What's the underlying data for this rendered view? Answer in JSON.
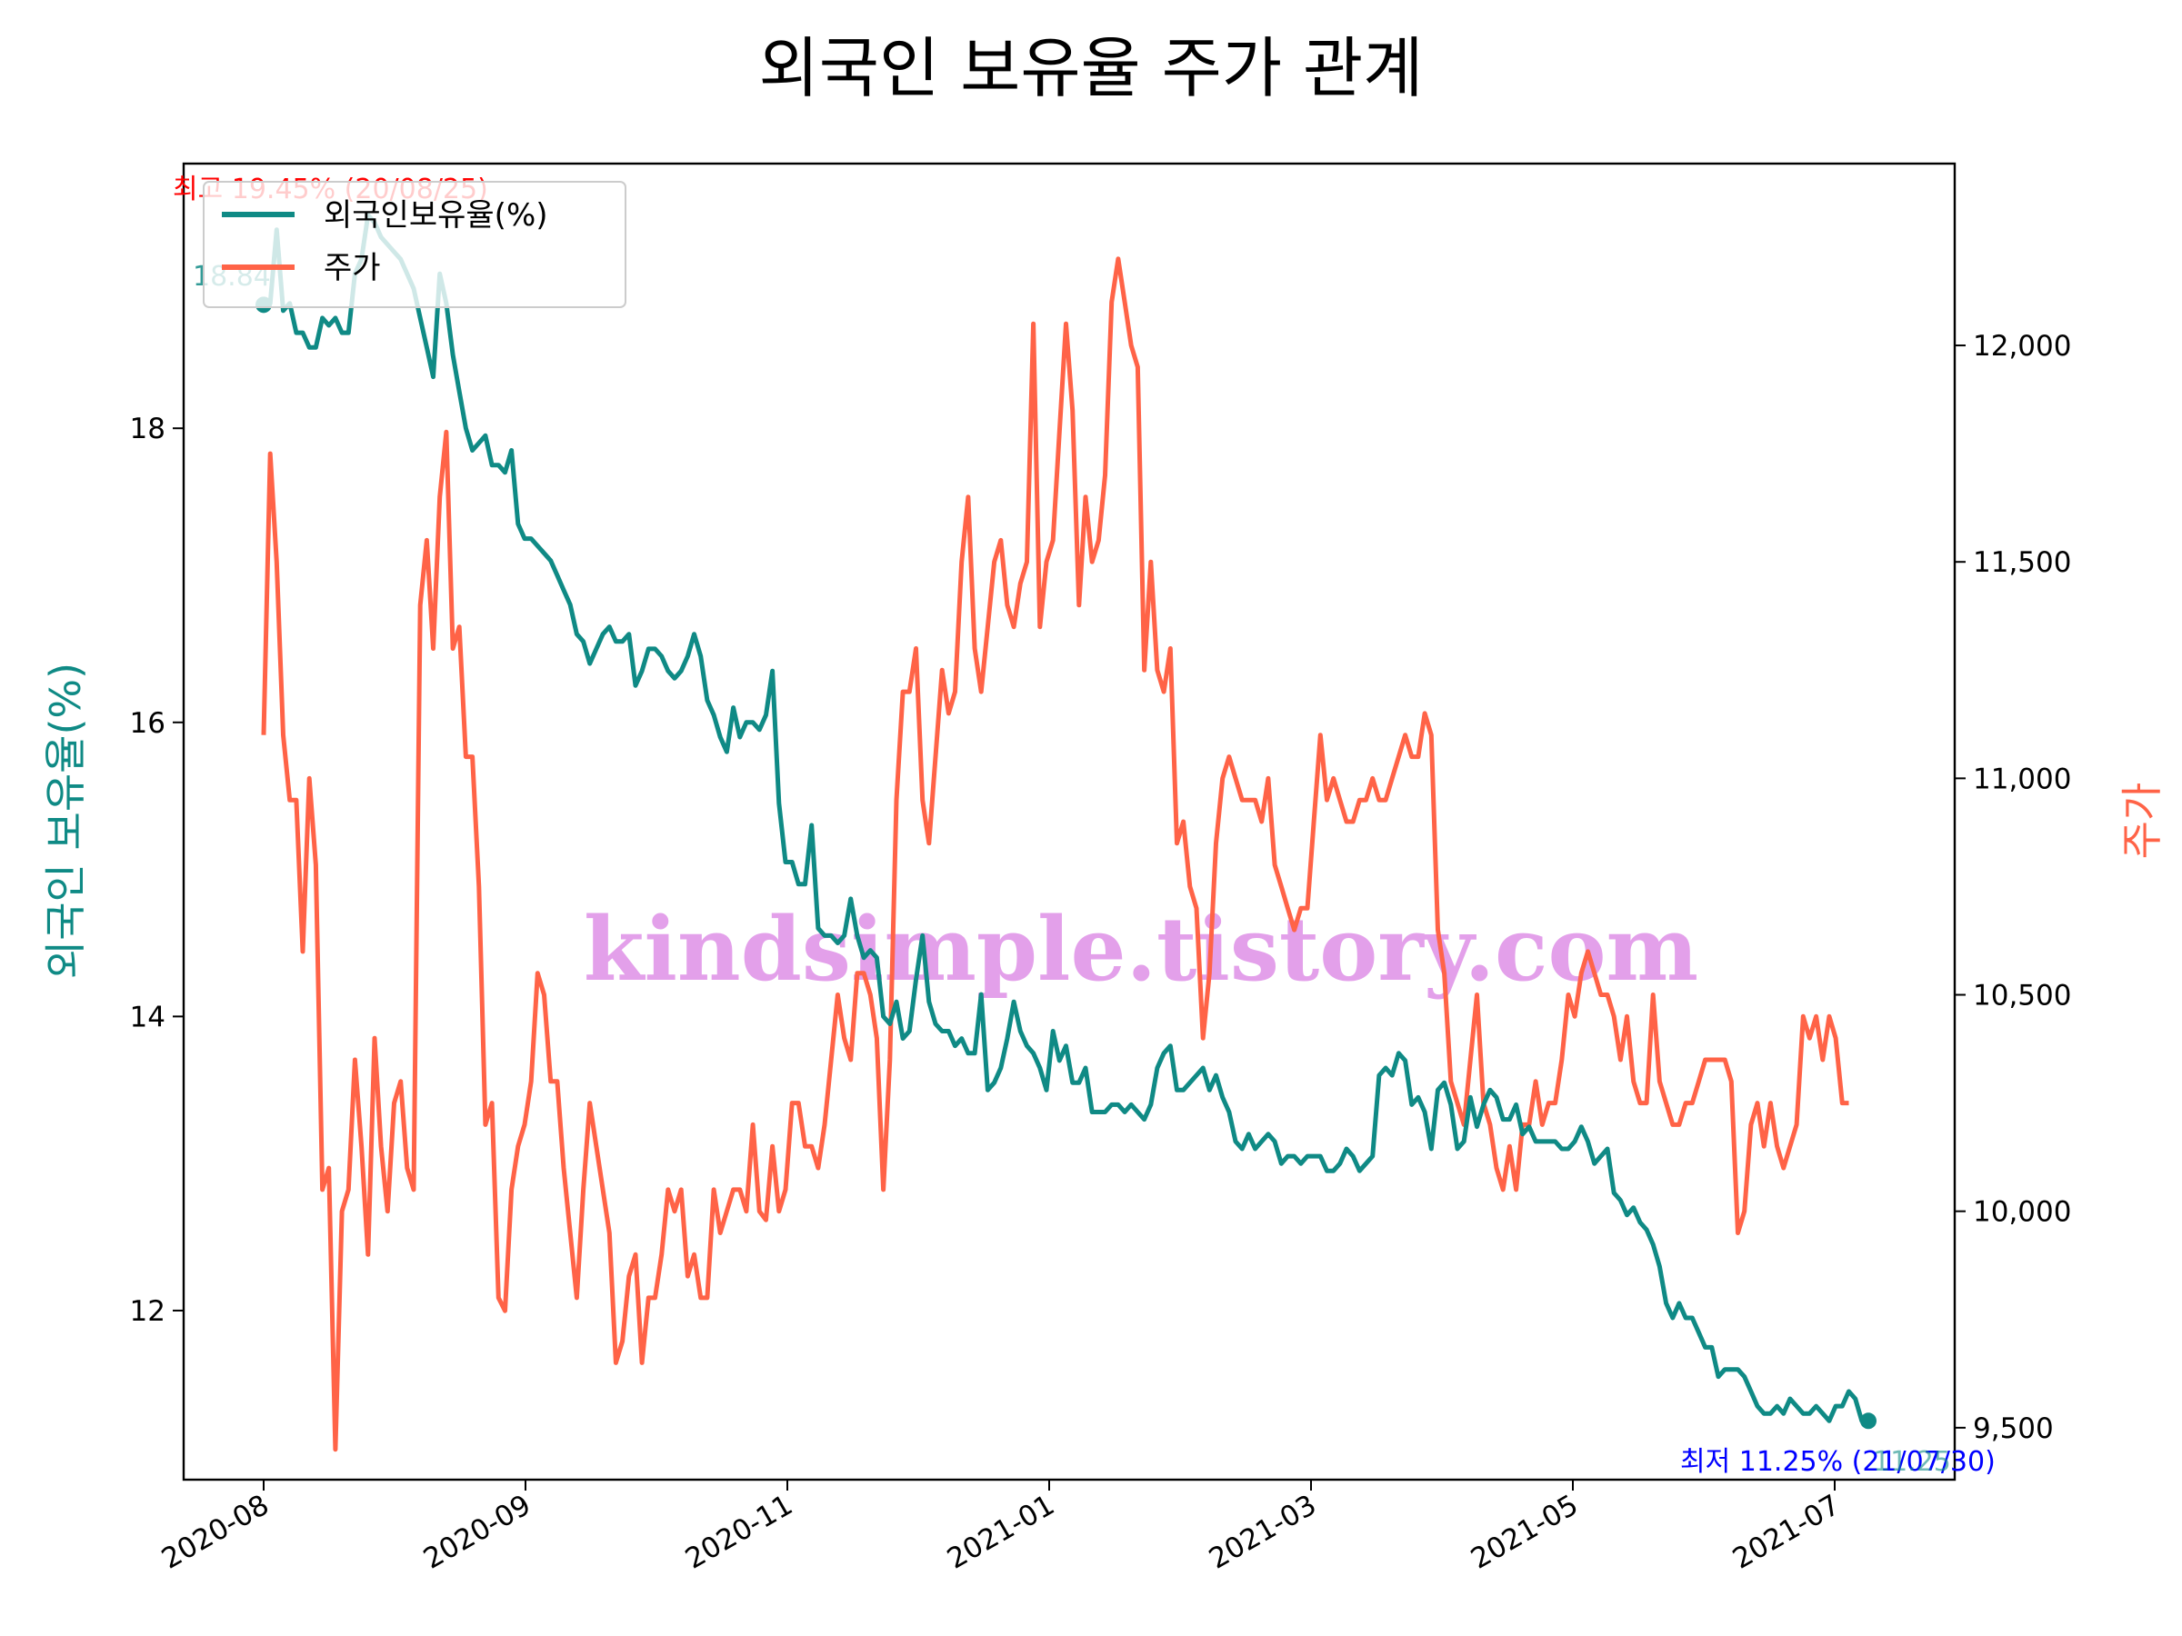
{
  "chart_data": {
    "type": "line",
    "title": "외국인 보유율 주가 관계",
    "ylabel_left": "외국인 보유율(%)",
    "ylabel_right": "주가",
    "x_ticks": [
      "2020-08",
      "2020-09",
      "2020-11",
      "2021-01",
      "2021-03",
      "2021-05",
      "2021-07"
    ],
    "y_left_ticks": [
      "12",
      "14",
      "16",
      "18"
    ],
    "y_right_ticks": [
      "9,500",
      "10,000",
      "10,500",
      "11,000",
      "11,500",
      "12,000"
    ],
    "y_left_range": [
      10.85,
      19.8
    ],
    "y_right_range": [
      9380,
      12420
    ],
    "legend": [
      "외국인보유율(%)",
      "주가"
    ],
    "legend_position": "upper-left",
    "colors": {
      "foreign": "#0f8a85",
      "price": "#ff6347",
      "max_annot": "#ff0000",
      "min_annot": "#0000ff"
    },
    "annotations": {
      "max": "최고 19.45% (20/08/25)",
      "start": "18.84",
      "min": "최저 11.25% (21/07/30)",
      "end": "11.25"
    },
    "watermark": "kindsimple.tistory.com",
    "series": [
      {
        "name": "외국인보유율(%)",
        "values": [
          18.84,
          18.85,
          19.35,
          18.8,
          18.85,
          18.65,
          18.65,
          18.55,
          18.55,
          18.75,
          18.7,
          18.75,
          18.65,
          18.65,
          19.05,
          19.15,
          19.45,
          19.4,
          19.3,
          19.25,
          19.2,
          19.15,
          19.05,
          18.95,
          18.75,
          18.55,
          18.35,
          19.05,
          18.85,
          18.5,
          18.25,
          18.0,
          17.85,
          17.9,
          17.95,
          17.75,
          17.75,
          17.7,
          17.85,
          17.35,
          17.25,
          17.25,
          17.2,
          17.15,
          17.1,
          17.0,
          16.9,
          16.8,
          16.6,
          16.55,
          16.4,
          16.5,
          16.6,
          16.65,
          16.55,
          16.55,
          16.6,
          16.25,
          16.35,
          16.5,
          16.5,
          16.45,
          16.35,
          16.3,
          16.35,
          16.45,
          16.6,
          16.45,
          16.15,
          16.05,
          15.9,
          15.8,
          16.1,
          15.9,
          16.0,
          16.0,
          15.95,
          16.05,
          16.35,
          15.45,
          15.05,
          15.05,
          14.9,
          14.9,
          15.3,
          14.6,
          14.55,
          14.55,
          14.5,
          14.55,
          14.8,
          14.55,
          14.4,
          14.45,
          14.4,
          14.0,
          13.95,
          14.1,
          13.85,
          13.9,
          14.25,
          14.55,
          14.1,
          13.95,
          13.9,
          13.9,
          13.8,
          13.85,
          13.75,
          13.75,
          14.15,
          13.5,
          13.55,
          13.65,
          13.85,
          14.1,
          13.9,
          13.8,
          13.75,
          13.65,
          13.5,
          13.9,
          13.7,
          13.8,
          13.55,
          13.55,
          13.65,
          13.35,
          13.35,
          13.35,
          13.4,
          13.4,
          13.35,
          13.4,
          13.35,
          13.3,
          13.4,
          13.65,
          13.75,
          13.8,
          13.5,
          13.5,
          13.55,
          13.6,
          13.65,
          13.5,
          13.6,
          13.45,
          13.35,
          13.15,
          13.1,
          13.2,
          13.1,
          13.15,
          13.2,
          13.15,
          13.0,
          13.05,
          13.05,
          13.0,
          13.05,
          13.05,
          13.05,
          12.95,
          12.95,
          13.0,
          13.1,
          13.05,
          12.95,
          13.0,
          13.05,
          13.6,
          13.65,
          13.6,
          13.75,
          13.7,
          13.4,
          13.45,
          13.35,
          13.1,
          13.5,
          13.55,
          13.4,
          13.1,
          13.15,
          13.45,
          13.25,
          13.4,
          13.5,
          13.45,
          13.3,
          13.3,
          13.4,
          13.2,
          13.25,
          13.15,
          13.15,
          13.15,
          13.15,
          13.1,
          13.1,
          13.15,
          13.25,
          13.15,
          13.0,
          13.05,
          13.1,
          12.8,
          12.75,
          12.65,
          12.7,
          12.6,
          12.55,
          12.45,
          12.3,
          12.05,
          11.95,
          12.05,
          11.95,
          11.95,
          11.85,
          11.75,
          11.75,
          11.55,
          11.6,
          11.6,
          11.6,
          11.55,
          11.45,
          11.35,
          11.3,
          11.3,
          11.35,
          11.3,
          11.4,
          11.35,
          11.3,
          11.3,
          11.35,
          11.3,
          11.25,
          11.35,
          11.35,
          11.45,
          11.4,
          11.25,
          11.25
        ]
      },
      {
        "name": "주가",
        "values": [
          11100,
          11750,
          11500,
          11100,
          10950,
          10950,
          10600,
          11000,
          10800,
          10050,
          10100,
          9450,
          10000,
          10050,
          10350,
          10150,
          9900,
          10400,
          10150,
          10000,
          10250,
          10300,
          10100,
          10050,
          11400,
          11550,
          11300,
          11650,
          11800,
          11300,
          11350,
          11050,
          11050,
          10750,
          10200,
          10250,
          9800,
          9770,
          10050,
          10150,
          10200,
          10300,
          10550,
          10500,
          10300,
          10300,
          10100,
          9950,
          9800,
          10050,
          10250,
          10150,
          10050,
          9950,
          9650,
          9700,
          9850,
          9900,
          9650,
          9800,
          9800,
          9900,
          10050,
          10000,
          10050,
          9850,
          9900,
          9800,
          9800,
          10050,
          9950,
          10000,
          10050,
          10050,
          10000,
          10200,
          10000,
          9980,
          10150,
          10000,
          10050,
          10250,
          10250,
          10150,
          10150,
          10100,
          10200,
          10350,
          10500,
          10400,
          10350,
          10550,
          10550,
          10500,
          10400,
          10050,
          10350,
          10950,
          11200,
          11200,
          11300,
          10950,
          10850,
          11050,
          11250,
          11150,
          11200,
          11500,
          11650,
          11300,
          11200,
          11350,
          11500,
          11550,
          11400,
          11350,
          11450,
          11500,
          12050,
          11350,
          11500,
          11550,
          11800,
          12050,
          11850,
          11400,
          11650,
          11500,
          11550,
          11700,
          12100,
          12200,
          12100,
          12000,
          11950,
          11250,
          11500,
          11250,
          11200,
          11300,
          10850,
          10900,
          10750,
          10700,
          10400,
          10550,
          10850,
          11000,
          11050,
          11000,
          10950,
          10950,
          10950,
          10900,
          11000,
          10800,
          10750,
          10700,
          10650,
          10700,
          10700,
          10900,
          11100,
          10950,
          11000,
          10950,
          10900,
          10900,
          10950,
          10950,
          11000,
          10950,
          10950,
          11000,
          11050,
          11100,
          11050,
          11050,
          11150,
          11100,
          10650,
          10550,
          10300,
          10250,
          10200,
          10350,
          10500,
          10250,
          10200,
          10100,
          10050,
          10150,
          10050,
          10200,
          10200,
          10300,
          10200,
          10250,
          10250,
          10350,
          10500,
          10450,
          10550,
          10600,
          10550,
          10500,
          10500,
          10450,
          10350,
          10450,
          10300,
          10250,
          10250,
          10500,
          10300,
          10250,
          10200,
          10200,
          10250,
          10250,
          10300,
          10350,
          10350,
          10350,
          10350,
          10300,
          9950,
          10000,
          10200,
          10250,
          10150,
          10250,
          10150,
          10100,
          10150,
          10200,
          10450,
          10400,
          10450,
          10350,
          10450,
          10400,
          10250,
          10250
        ]
      }
    ]
  }
}
